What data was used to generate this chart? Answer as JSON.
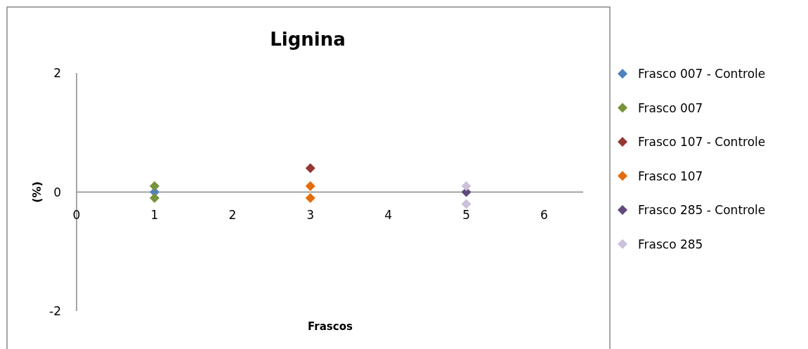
{
  "chart_data": {
    "type": "scatter",
    "title": "Lignina",
    "xlabel": "Frascos",
    "ylabel": "(%)",
    "xlim": [
      0,
      6.5
    ],
    "xticks": [
      0,
      1,
      2,
      3,
      4,
      5,
      6
    ],
    "ylim": [
      -2,
      2
    ],
    "yticks": [
      -2,
      0,
      2
    ],
    "grid": false,
    "legend": "right",
    "marker": "diamond",
    "series": [
      {
        "name": "Frasco 007 - Controle",
        "color": "#4f81bd",
        "x": [
          1
        ],
        "values": [
          0
        ]
      },
      {
        "name": "Frasco 007",
        "color": "#77933c",
        "x": [
          1,
          1
        ],
        "values": [
          0.1,
          -0.1
        ]
      },
      {
        "name": "Frasco 107 - Controle",
        "color": "#953735",
        "x": [
          3
        ],
        "values": [
          0.4
        ]
      },
      {
        "name": "Frasco 107",
        "color": "#e46c0a",
        "x": [
          3,
          3
        ],
        "values": [
          0.1,
          -0.1
        ]
      },
      {
        "name": "Frasco 285 - Controle",
        "color": "#604a7b",
        "x": [
          5
        ],
        "values": [
          0
        ]
      },
      {
        "name": "Frasco 285",
        "color": "#ccc1da",
        "x": [
          5,
          5
        ],
        "values": [
          0.1,
          -0.2
        ]
      }
    ]
  }
}
